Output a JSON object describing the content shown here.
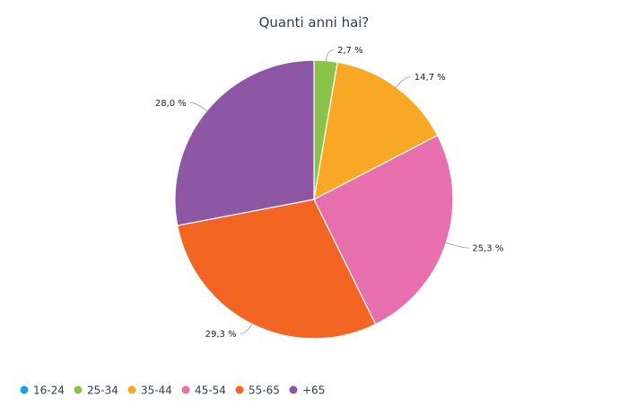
{
  "chart_data": {
    "type": "pie",
    "title": "Quanti anni hai?",
    "categories": [
      "16-24",
      "25-34",
      "35-44",
      "45-54",
      "55-65",
      "+65"
    ],
    "values": [
      0.0,
      2.7,
      14.7,
      25.3,
      29.3,
      28.0
    ],
    "value_labels": [
      "",
      "2,7 %",
      "14,7 %",
      "25,3 %",
      "29,3 %",
      "28,0 %"
    ],
    "colors": [
      "#1ba1e2",
      "#8bc34a",
      "#f9a825",
      "#e86fae",
      "#f26522",
      "#8e57a4"
    ],
    "start_angle": "12 o'clock",
    "direction": "clockwise",
    "legend_position": "bottom-left"
  }
}
